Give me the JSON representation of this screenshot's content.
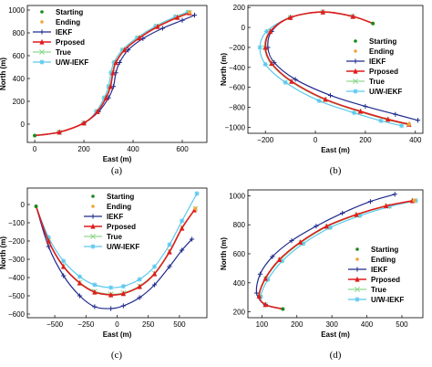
{
  "colors": {
    "starting": "#1a8a1a",
    "ending": "#f2a33a",
    "iekf": "#1f2a8c",
    "proposed": "#e01c1c",
    "true": "#90d890",
    "uw_iekf": "#5ac8ee"
  },
  "legend_labels": [
    "Starting",
    "Ending",
    "IEKF",
    "Prposed",
    "True",
    "U/W-IEKF"
  ],
  "chart_data": [
    {
      "type": "line",
      "caption": "(a)",
      "xlabel": "East (m)",
      "ylabel": "North (m)",
      "xlim": [
        -30,
        700
      ],
      "ylim": [
        -160,
        1040
      ],
      "xticks": [
        0,
        200,
        400,
        600
      ],
      "yticks": [
        0,
        200,
        400,
        600,
        800,
        1000
      ],
      "legend_position": "top-left",
      "series": [
        {
          "name": "IEKF",
          "x": [
            0,
            100,
            200,
            260,
            300,
            320,
            330,
            345,
            380,
            440,
            520,
            600,
            650
          ],
          "y": [
            -100,
            -70,
            10,
            110,
            230,
            330,
            450,
            540,
            650,
            750,
            840,
            910,
            955
          ]
        },
        {
          "name": "Prposed",
          "x": [
            0,
            100,
            200,
            255,
            290,
            308,
            318,
            330,
            365,
            425,
            500,
            580,
            630
          ],
          "y": [
            -100,
            -70,
            10,
            110,
            230,
            330,
            450,
            540,
            650,
            755,
            855,
            935,
            975
          ]
        },
        {
          "name": "True",
          "x": [
            0,
            100,
            200,
            255,
            288,
            306,
            316,
            328,
            362,
            422,
            498,
            578,
            628
          ],
          "y": [
            -100,
            -70,
            10,
            110,
            230,
            330,
            450,
            540,
            650,
            755,
            857,
            938,
            978
          ]
        },
        {
          "name": "U/W-IEKF",
          "x": [
            0,
            100,
            200,
            250,
            282,
            300,
            310,
            322,
            356,
            416,
            492,
            572,
            622
          ],
          "y": [
            -100,
            -70,
            10,
            110,
            230,
            330,
            450,
            540,
            650,
            757,
            860,
            942,
            982
          ]
        }
      ],
      "start": [
        0,
        -100
      ],
      "end": [
        630,
        978
      ]
    },
    {
      "type": "line",
      "caption": "(b)",
      "xlabel": "East (m)",
      "ylabel": "North (m)",
      "xlim": [
        -270,
        430
      ],
      "ylim": [
        -1060,
        220
      ],
      "xticks": [
        -200,
        0,
        200,
        400
      ],
      "yticks": [
        200,
        0,
        -200,
        -400,
        -600,
        -800,
        -1000
      ],
      "legend_position": "center-right",
      "series": [
        {
          "name": "IEKF",
          "x": [
            230,
            150,
            30,
            -100,
            -175,
            -190,
            -165,
            -80,
            60,
            200,
            320,
            410
          ],
          "y": [
            40,
            110,
            155,
            100,
            -40,
            -200,
            -350,
            -520,
            -680,
            -790,
            -870,
            -930
          ]
        },
        {
          "name": "Prposed",
          "x": [
            230,
            150,
            30,
            -100,
            -180,
            -200,
            -175,
            -95,
            40,
            180,
            290,
            375
          ],
          "y": [
            40,
            110,
            155,
            100,
            -40,
            -200,
            -360,
            -540,
            -720,
            -840,
            -920,
            -970
          ]
        },
        {
          "name": "True",
          "x": [
            230,
            150,
            30,
            -100,
            -182,
            -203,
            -178,
            -98,
            37,
            177,
            287,
            372
          ],
          "y": [
            40,
            110,
            155,
            100,
            -40,
            -200,
            -362,
            -543,
            -724,
            -844,
            -924,
            -975
          ]
        },
        {
          "name": "U/W-IEKF",
          "x": [
            230,
            150,
            30,
            -100,
            -195,
            -222,
            -200,
            -120,
            15,
            155,
            262,
            345
          ],
          "y": [
            40,
            110,
            155,
            100,
            -40,
            -200,
            -370,
            -550,
            -735,
            -855,
            -935,
            -985
          ]
        }
      ],
      "start": [
        230,
        40
      ],
      "end": [
        375,
        -970
      ]
    },
    {
      "type": "line",
      "caption": "(c)",
      "xlabel": "East (m)",
      "ylabel": "North (m)",
      "xlim": [
        -720,
        720
      ],
      "ylim": [
        -620,
        90
      ],
      "xticks": [
        -500,
        -250,
        0,
        250,
        500
      ],
      "yticks": [
        0,
        -100,
        -200,
        -300,
        -400,
        -500,
        -600
      ],
      "legend_position": "top-center",
      "series": [
        {
          "name": "IEKF",
          "x": [
            -650,
            -550,
            -430,
            -300,
            -180,
            -50,
            50,
            180,
            300,
            420,
            520,
            600
          ],
          "y": [
            -10,
            -230,
            -390,
            -500,
            -560,
            -570,
            -555,
            -510,
            -440,
            -340,
            -250,
            -190
          ]
        },
        {
          "name": "Prposed",
          "x": [
            -650,
            -550,
            -430,
            -300,
            -180,
            -50,
            50,
            180,
            300,
            420,
            520,
            620
          ],
          "y": [
            -10,
            -200,
            -340,
            -430,
            -480,
            -495,
            -488,
            -450,
            -380,
            -260,
            -130,
            -30
          ]
        },
        {
          "name": "True",
          "x": [
            -650,
            -550,
            -430,
            -300,
            -180,
            -50,
            50,
            180,
            300,
            420,
            520,
            628
          ],
          "y": [
            -10,
            -198,
            -337,
            -427,
            -476,
            -491,
            -484,
            -446,
            -376,
            -256,
            -126,
            -22
          ]
        },
        {
          "name": "U/W-IEKF",
          "x": [
            -650,
            -550,
            -430,
            -300,
            -180,
            -50,
            50,
            180,
            300,
            420,
            520,
            640
          ],
          "y": [
            -10,
            -180,
            -310,
            -395,
            -440,
            -455,
            -448,
            -410,
            -340,
            -220,
            -90,
            60
          ]
        }
      ],
      "start": [
        -650,
        -10
      ],
      "end": [
        628,
        -22
      ]
    },
    {
      "type": "line",
      "caption": "(d)",
      "xlabel": "East (m)",
      "ylabel": "North (m)",
      "xlim": [
        60,
        560
      ],
      "ylim": [
        160,
        1040
      ],
      "xticks": [
        100,
        200,
        300,
        400,
        500
      ],
      "yticks": [
        200,
        400,
        600,
        800,
        1000
      ],
      "legend_position": "bottom-right",
      "series": [
        {
          "name": "IEKF",
          "x": [
            160,
            110,
            85,
            95,
            130,
            185,
            255,
            330,
            410,
            480
          ],
          "y": [
            220,
            250,
            330,
            460,
            580,
            690,
            790,
            880,
            960,
            1010
          ]
        },
        {
          "name": "Prposed",
          "x": [
            160,
            110,
            92,
            110,
            150,
            210,
            285,
            370,
            455,
            530
          ],
          "y": [
            220,
            250,
            310,
            430,
            560,
            680,
            790,
            870,
            930,
            965
          ]
        },
        {
          "name": "True",
          "x": [
            160,
            110,
            93,
            111,
            152,
            212,
            287,
            372,
            458,
            535
          ],
          "y": [
            220,
            250,
            308,
            428,
            557,
            677,
            787,
            868,
            929,
            967
          ]
        },
        {
          "name": "U/W-IEKF",
          "x": [
            160,
            110,
            97,
            117,
            158,
            218,
            295,
            380,
            465,
            540
          ],
          "y": [
            220,
            250,
            305,
            422,
            550,
            670,
            780,
            862,
            925,
            965
          ]
        }
      ],
      "start": [
        160,
        220
      ],
      "end": [
        535,
        967
      ]
    }
  ]
}
